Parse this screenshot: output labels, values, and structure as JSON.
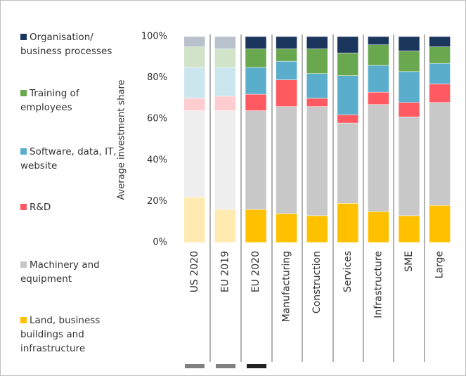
{
  "chart_data": {
    "type": "stacked_bar",
    "y_axis_label": "Average investment share",
    "categories": [
      "US 2020",
      "EU 2019",
      "EU 2020",
      "Manufacturing",
      "Construction",
      "Services",
      "Infrastructure",
      "SME",
      "Large"
    ],
    "faded": [
      true,
      true,
      false,
      false,
      false,
      false,
      false,
      false,
      false
    ],
    "series": [
      {
        "name": "Land, business buildings and infrastructure",
        "color": "#ffc000",
        "values": [
          22,
          16,
          16,
          14,
          13,
          19,
          15,
          13,
          18
        ]
      },
      {
        "name": "Machinery and equipment",
        "color": "#c8c8c8",
        "values": [
          42,
          48,
          48,
          52,
          53,
          39,
          52,
          48,
          50
        ]
      },
      {
        "name": "R&D",
        "color": "#ff5a62",
        "values": [
          6,
          7,
          8,
          13,
          4,
          4,
          6,
          7,
          9
        ]
      },
      {
        "name": "Software, data, IT, website",
        "color": "#5aaecb",
        "values": [
          15,
          14,
          13,
          9,
          12,
          19,
          13,
          15,
          10
        ]
      },
      {
        "name": "Training of employees",
        "color": "#6aa84f",
        "values": [
          10,
          9,
          9,
          6,
          12,
          11,
          10,
          10,
          8
        ]
      },
      {
        "name": "Organisation/ business processes",
        "color": "#1b365d",
        "values": [
          5,
          6,
          6,
          6,
          6,
          8,
          4,
          7,
          5
        ]
      }
    ],
    "ylim": [
      0,
      100
    ],
    "yticks": [
      {
        "value": 0,
        "label": "0%"
      },
      {
        "value": 20,
        "label": "20%"
      },
      {
        "value": 40,
        "label": "40%"
      },
      {
        "value": 60,
        "label": "60%"
      },
      {
        "value": 80,
        "label": "80%"
      },
      {
        "value": 100,
        "label": "100%"
      }
    ]
  }
}
